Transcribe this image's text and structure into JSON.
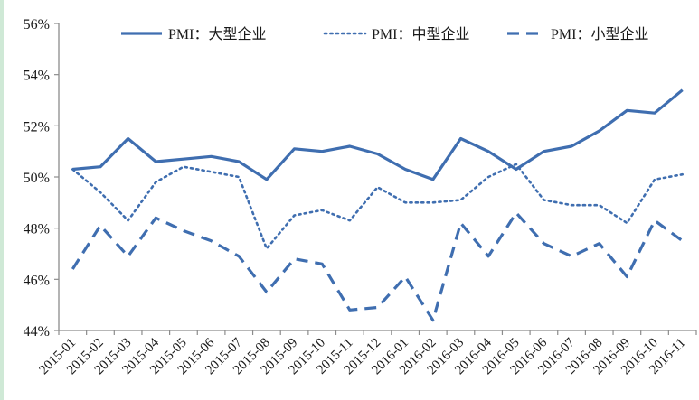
{
  "chart_data": {
    "type": "line",
    "title": "",
    "xlabel": "",
    "ylabel": "",
    "ylim": [
      44,
      56
    ],
    "yticks": [
      "44%",
      "46%",
      "48%",
      "50%",
      "52%",
      "54%",
      "56%"
    ],
    "ytick_values": [
      44,
      46,
      48,
      50,
      52,
      54,
      56
    ],
    "grid": false,
    "legend_position": "top",
    "categories": [
      "2015-01",
      "2015-02",
      "2015-03",
      "2015-04",
      "2015-05",
      "2015-06",
      "2015-07",
      "2015-08",
      "2015-09",
      "2015-10",
      "2015-11",
      "2015-12",
      "2016-01",
      "2016-02",
      "2016-03",
      "2016-04",
      "2016-05",
      "2016-06",
      "2016-07",
      "2016-08",
      "2016-09",
      "2016-10",
      "2016-11"
    ],
    "series": [
      {
        "name": "PMI：大型企业",
        "style": "solid",
        "color": "#3f6eb0",
        "values": [
          50.3,
          50.4,
          51.5,
          50.6,
          50.7,
          50.8,
          50.6,
          49.9,
          51.1,
          51.0,
          51.2,
          50.9,
          50.3,
          49.9,
          51.5,
          51.0,
          50.3,
          51.0,
          51.2,
          51.8,
          52.6,
          52.5,
          53.4
        ]
      },
      {
        "name": "PMI：中型企业",
        "style": "dotted",
        "color": "#3f6eb0",
        "values": [
          50.3,
          49.4,
          48.3,
          49.8,
          50.4,
          50.2,
          50.0,
          47.2,
          48.5,
          48.7,
          48.3,
          49.6,
          49.0,
          49.0,
          49.1,
          50.0,
          50.5,
          49.1,
          48.9,
          48.9,
          48.2,
          49.9,
          50.1
        ]
      },
      {
        "name": "PMI：小型企业",
        "style": "dashed",
        "color": "#3f6eb0",
        "values": [
          46.4,
          48.1,
          46.9,
          48.4,
          47.9,
          47.5,
          46.9,
          45.5,
          46.8,
          46.6,
          44.8,
          44.9,
          46.1,
          44.4,
          48.2,
          46.9,
          48.6,
          47.4,
          46.9,
          47.4,
          46.1,
          48.3,
          47.5
        ]
      }
    ]
  },
  "colors": {
    "axis": "#8c8c8c",
    "series": "#3f6eb0",
    "border": "#cfe9d6"
  }
}
